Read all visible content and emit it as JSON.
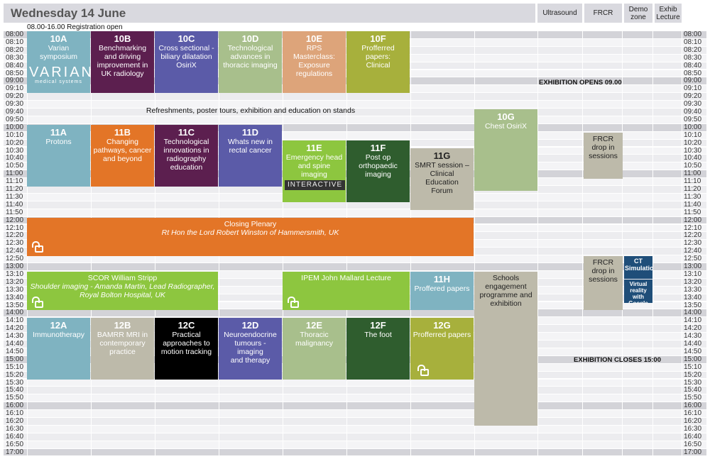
{
  "header": {
    "day": "Wednesday 14 June",
    "columns": [
      "Ultrasound",
      "FRCR",
      "Demo zone",
      "Exhib Lecture"
    ]
  },
  "times": [
    "08:00",
    "08:10",
    "08:20",
    "08:30",
    "08:40",
    "08:50",
    "09:00",
    "09:10",
    "09:20",
    "09:30",
    "09:40",
    "09:50",
    "10:00",
    "10:10",
    "10:20",
    "10:30",
    "10:40",
    "10:50",
    "11:00",
    "11:10",
    "11:20",
    "11:30",
    "11:40",
    "11:50",
    "12:00",
    "12:10",
    "12:20",
    "12:30",
    "12:40",
    "12:50",
    "13:00",
    "13:10",
    "13:20",
    "13:30",
    "13:40",
    "13:50",
    "14:00",
    "14:10",
    "14:20",
    "14:30",
    "14:40",
    "14:50",
    "15:00",
    "15:10",
    "15:20",
    "15:30",
    "15:40",
    "15:50",
    "16:00",
    "16:10",
    "16:20",
    "16:30",
    "16:40",
    "16:50",
    "17:00"
  ],
  "notes": {
    "registration": "08.00-16.00 Registration open",
    "exhibition_opens": "EXHIBITION OPENS 09.00",
    "refreshments": "Refreshments, poster tours, exhibition and education on stands",
    "exhibition_closes": "EXHIBITION CLOSES 15:00"
  },
  "colors": {
    "teal": "#7fb3c1",
    "purple": "#5c1f4f",
    "indigo": "#5b5ba8",
    "sage": "#a8bf8c",
    "peach": "#dda47a",
    "olive": "#a7b03c",
    "orange": "#e37527",
    "green": "#8dc63f",
    "darkgreen": "#2f5d2e",
    "grey": "#bdbaaa",
    "black": "#000000",
    "navy": "#1f4e79"
  },
  "sessions": [
    {
      "id": "10A",
      "code": "10A",
      "lines": [
        "Varian symposium"
      ],
      "logo": "VARIAN",
      "logo_sub": "medical systems"
    },
    {
      "id": "10B",
      "code": "10B",
      "lines": [
        "Benchmarking",
        "and driving",
        "improvement in",
        "UK radiology"
      ]
    },
    {
      "id": "10C",
      "code": "10C",
      "lines": [
        "Cross sectional -",
        "biliary dilatation",
        "OsiriX"
      ]
    },
    {
      "id": "10D",
      "code": "10D",
      "lines": [
        "Technological",
        "advances in",
        "thoracic imaging"
      ]
    },
    {
      "id": "10E",
      "code": "10E",
      "lines": [
        "RPS Masterclass:",
        "Exposure",
        "regulations"
      ]
    },
    {
      "id": "10F",
      "code": "10F",
      "lines": [
        "Profferred papers:",
        "Clinical"
      ]
    },
    {
      "id": "10G",
      "code": "10G",
      "lines": [
        "Chest OsiriX"
      ]
    },
    {
      "id": "11A",
      "code": "11A",
      "lines": [
        "Protons"
      ]
    },
    {
      "id": "11B",
      "code": "11B",
      "lines": [
        "Changing",
        "pathways, cancer",
        "and beyond"
      ]
    },
    {
      "id": "11C",
      "code": "11C",
      "lines": [
        "Technological",
        "innovations in",
        "radiography",
        "education"
      ]
    },
    {
      "id": "11D",
      "code": "11D",
      "lines": [
        "Whats new in",
        "rectal cancer"
      ]
    },
    {
      "id": "11E",
      "code": "11E",
      "lines": [
        "Emergency head",
        "and spine imaging"
      ],
      "tag": "INTERACTIVE"
    },
    {
      "id": "11F",
      "code": "11F",
      "lines": [
        "Post op",
        "orthopaedic",
        "imaging"
      ]
    },
    {
      "id": "11G",
      "code": "11G",
      "lines": [
        "SMRT session –",
        "Clinical Education",
        "Forum"
      ]
    },
    {
      "id": "frcr1",
      "code": "",
      "lines": [
        "FRCR",
        "drop in",
        "sessions"
      ]
    },
    {
      "id": "plenary",
      "code": "",
      "lines": [
        "Closing Plenary",
        "Rt Hon the Lord Robert Winston of Hammersmith, UK"
      ]
    },
    {
      "id": "scor",
      "code": "",
      "lines": [
        "SCOR William Stripp",
        "Shoulder imaging - Amanda Martin, Lead Radiographer,",
        "Royal Bolton Hospital, UK"
      ]
    },
    {
      "id": "ipem",
      "code": "",
      "lines": [
        "IPEM John Mallard Lecture"
      ]
    },
    {
      "id": "11H",
      "code": "11H",
      "lines": [
        "Proffered papers"
      ]
    },
    {
      "id": "schools",
      "code": "",
      "lines": [
        "Schools",
        "engagement",
        "programme and",
        "exhibition"
      ]
    },
    {
      "id": "frcr2",
      "code": "",
      "lines": [
        "FRCR",
        "drop in",
        "sessions"
      ]
    },
    {
      "id": "ct",
      "code": "",
      "lines": [
        "CT",
        "Simulation"
      ]
    },
    {
      "id": "vr",
      "code": "",
      "lines": [
        "Virtual",
        "reality with",
        "Google",
        "Cardboard"
      ]
    },
    {
      "id": "12A",
      "code": "12A",
      "lines": [
        "Immunotherapy"
      ]
    },
    {
      "id": "12B",
      "code": "12B",
      "lines": [
        "BAMRR MRI in",
        "contemporary",
        "practice"
      ]
    },
    {
      "id": "12C",
      "code": "12C",
      "lines": [
        "Practical",
        "approaches to",
        "motion tracking"
      ]
    },
    {
      "id": "12D",
      "code": "12D",
      "lines": [
        "Neuroendocrine",
        "tumours - imaging",
        "and therapy"
      ]
    },
    {
      "id": "12E",
      "code": "12E",
      "lines": [
        "Thoracic",
        "malignancy"
      ]
    },
    {
      "id": "12F",
      "code": "12F",
      "lines": [
        "The foot"
      ]
    },
    {
      "id": "12G",
      "code": "12G",
      "lines": [
        "Profferred papers"
      ]
    }
  ]
}
